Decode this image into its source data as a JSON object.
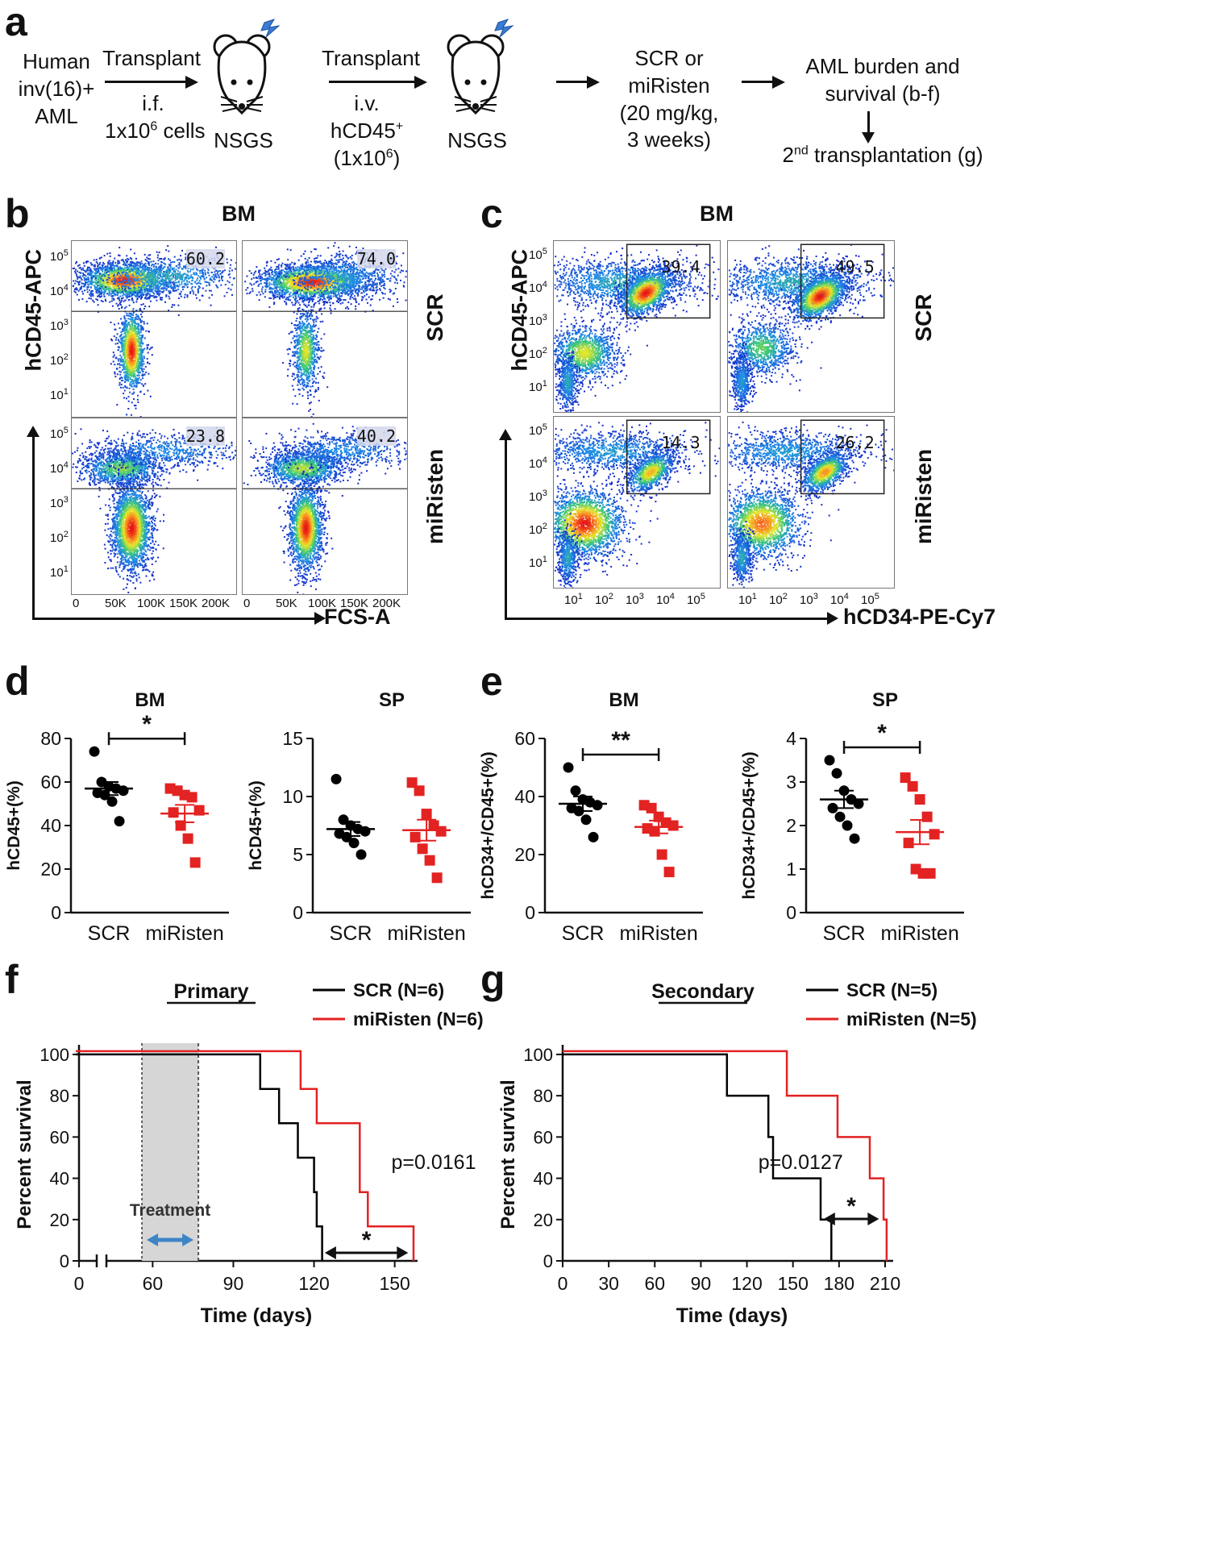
{
  "panel_letters": {
    "a": "a",
    "b": "b",
    "c": "c",
    "d": "d",
    "e": "e",
    "f": "f",
    "g": "g"
  },
  "panel_a": {
    "source_line1": "Human",
    "source_line2": "inv(16)+",
    "source_line3": "AML",
    "step1_top": "Transplant",
    "step1_route": "i.f.",
    "step1_cells_pre": "1x10",
    "step1_cells_exp": "6",
    "step1_cells_post": " cells",
    "mouse1_label": "NSGS",
    "step2_top": "Transplant",
    "step2_route": "i.v.",
    "step2_marker_pre": "hCD45",
    "step2_marker_sup": "+",
    "step2_count_pre": "(1x10",
    "step2_count_exp": "6",
    "step2_count_post": ")",
    "mouse2_label": "NSGS",
    "treat_line1": "SCR or",
    "treat_line2": "miRisten",
    "treat_line3": "(20 mg/kg,",
    "treat_line4": "3 weeks)",
    "outcome_line1": "AML burden and",
    "outcome_line2": "survival (b-f)",
    "second_pre": "2",
    "second_sup": "nd",
    "second_post": " transplantation (g)"
  },
  "panel_b": {
    "title": "BM",
    "y_axis": "hCD45-APC",
    "x_axis": "FCS-A",
    "row_labels": [
      "SCR",
      "miRisten"
    ],
    "values": [
      "60.2",
      "74.0",
      "23.8",
      "40.2"
    ],
    "y_ticks": [
      "10",
      "10",
      "10",
      "10",
      "10"
    ],
    "y_tick_exps": [
      "5",
      "4",
      "3",
      "2",
      "1"
    ],
    "x_ticks": [
      "0",
      "50K",
      "100K",
      "150K",
      "200K"
    ]
  },
  "panel_c": {
    "title": "BM",
    "y_axis": "hCD45-APC",
    "x_axis": "hCD34-PE-Cy7",
    "row_labels": [
      "SCR",
      "miRisten"
    ],
    "values": [
      "39.4",
      "49.5",
      "14.3",
      "26.2"
    ],
    "y_ticks": [
      "10",
      "10",
      "10",
      "10",
      "10"
    ],
    "y_tick_exps": [
      "5",
      "4",
      "3",
      "2",
      "1"
    ],
    "x_ticks": [
      "10",
      "10",
      "10",
      "10",
      "10"
    ],
    "x_tick_exps": [
      "1",
      "2",
      "3",
      "4",
      "5"
    ]
  },
  "chart_data": [
    {
      "id": "d_bm",
      "type": "scatter",
      "title": "BM",
      "ylabel": "hCD45+(%)",
      "categories": [
        "SCR",
        "miRisten"
      ],
      "ylim": [
        0,
        80
      ],
      "yticks": [
        0,
        20,
        40,
        60,
        80
      ],
      "significance": "*",
      "series": [
        {
          "name": "SCR",
          "color": "#000000",
          "values": [
            74,
            60,
            58,
            57,
            56,
            55,
            54,
            51,
            42
          ],
          "mean": 57,
          "sem": 3
        },
        {
          "name": "miRisten",
          "color": "#e32222",
          "values": [
            57,
            56,
            54,
            53,
            47,
            46,
            40,
            34,
            23
          ],
          "mean": 45.5,
          "sem": 4
        }
      ]
    },
    {
      "id": "d_sp",
      "type": "scatter",
      "title": "SP",
      "ylabel": "hCD45+(%)",
      "categories": [
        "SCR",
        "miRisten"
      ],
      "ylim": [
        0,
        15
      ],
      "yticks": [
        0,
        5,
        10,
        15
      ],
      "series": [
        {
          "name": "SCR",
          "color": "#000000",
          "values": [
            11.5,
            8,
            7.5,
            7.2,
            7,
            6.8,
            6.5,
            6,
            5
          ],
          "mean": 7.2,
          "sem": 0.6
        },
        {
          "name": "miRisten",
          "color": "#e32222",
          "values": [
            11.2,
            10.5,
            8.5,
            7.5,
            7,
            6.5,
            5.5,
            4.5,
            3
          ],
          "mean": 7.1,
          "sem": 0.9
        }
      ]
    },
    {
      "id": "e_bm",
      "type": "scatter",
      "title": "BM",
      "ylabel": "hCD34+/CD45+(%)",
      "categories": [
        "SCR",
        "miRisten"
      ],
      "ylim": [
        0,
        60
      ],
      "yticks": [
        0,
        20,
        40,
        60
      ],
      "significance": "**",
      "series": [
        {
          "name": "SCR",
          "color": "#000000",
          "values": [
            50,
            42,
            39,
            38,
            37,
            36,
            35,
            32,
            26
          ],
          "mean": 37.5,
          "sem": 2.5
        },
        {
          "name": "miRisten",
          "color": "#e32222",
          "values": [
            37,
            36,
            33,
            31,
            30,
            29,
            28,
            20,
            14
          ],
          "mean": 29.5,
          "sem": 2.2
        }
      ]
    },
    {
      "id": "e_sp",
      "type": "scatter",
      "title": "SP",
      "ylabel": "hCD34+/CD45+(%)",
      "categories": [
        "SCR",
        "miRisten"
      ],
      "ylim": [
        0,
        4
      ],
      "yticks": [
        0,
        1,
        2,
        3,
        4
      ],
      "significance": "*",
      "series": [
        {
          "name": "SCR",
          "color": "#000000",
          "values": [
            3.5,
            3.2,
            2.8,
            2.6,
            2.5,
            2.4,
            2.2,
            2.0,
            1.7
          ],
          "mean": 2.6,
          "sem": 0.2
        },
        {
          "name": "miRisten",
          "color": "#e32222",
          "values": [
            3.1,
            2.9,
            2.6,
            2.2,
            1.8,
            1.6,
            1.0,
            0.9,
            0.9
          ],
          "mean": 1.85,
          "sem": 0.28
        }
      ]
    },
    {
      "id": "f",
      "type": "line",
      "title": "Primary",
      "ylabel": "Percent survival",
      "xlabel": "Time (days)",
      "xlim": [
        0,
        160
      ],
      "xticks": [
        0,
        60,
        90,
        120,
        150
      ],
      "ylim": [
        0,
        100
      ],
      "yticks": [
        0,
        20,
        40,
        60,
        80,
        100
      ],
      "annotation": "p=0.0161",
      "treatment_label": "Treatment",
      "treatment_window": [
        56,
        77
      ],
      "significance": "*",
      "series": [
        {
          "name": "SCR (N=6)",
          "color": "#000000",
          "steps": [
            [
              0,
              100
            ],
            [
              100,
              100
            ],
            [
              100,
              83.3
            ],
            [
              107,
              83.3
            ],
            [
              107,
              66.7
            ],
            [
              114,
              66.7
            ],
            [
              114,
              50
            ],
            [
              120,
              50
            ],
            [
              120,
              33.3
            ],
            [
              121,
              33.3
            ],
            [
              121,
              16.7
            ],
            [
              123,
              16.7
            ],
            [
              123,
              0
            ]
          ]
        },
        {
          "name": "miRisten (N=6)",
          "color": "#e32222",
          "steps": [
            [
              0,
              100
            ],
            [
              115,
              100
            ],
            [
              115,
              83.3
            ],
            [
              121,
              83.3
            ],
            [
              121,
              66.7
            ],
            [
              137,
              66.7
            ],
            [
              137,
              33.3
            ],
            [
              140,
              33.3
            ],
            [
              140,
              16.7
            ],
            [
              157,
              16.7
            ],
            [
              157,
              0
            ]
          ]
        }
      ]
    },
    {
      "id": "g",
      "type": "line",
      "title": "Secondary",
      "ylabel": "Percent survival",
      "xlabel": "Time (days)",
      "xlim": [
        0,
        220
      ],
      "xticks": [
        0,
        30,
        60,
        90,
        120,
        150,
        180,
        210
      ],
      "ylim": [
        0,
        100
      ],
      "yticks": [
        0,
        20,
        40,
        60,
        80,
        100
      ],
      "annotation": "p=0.0127",
      "significance": "*",
      "series": [
        {
          "name": "SCR (N=5)",
          "color": "#000000",
          "steps": [
            [
              0,
              100
            ],
            [
              107,
              100
            ],
            [
              107,
              80
            ],
            [
              134,
              80
            ],
            [
              134,
              60
            ],
            [
              137,
              60
            ],
            [
              137,
              40
            ],
            [
              168,
              40
            ],
            [
              168,
              20
            ],
            [
              175,
              20
            ],
            [
              175,
              0
            ]
          ]
        },
        {
          "name": "miRisten (N=5)",
          "color": "#e32222",
          "steps": [
            [
              0,
              100
            ],
            [
              146,
              100
            ],
            [
              146,
              80
            ],
            [
              179,
              80
            ],
            [
              179,
              60
            ],
            [
              200,
              60
            ],
            [
              200,
              40
            ],
            [
              209,
              40
            ],
            [
              209,
              20
            ],
            [
              211,
              20
            ],
            [
              211,
              0
            ]
          ]
        }
      ]
    }
  ]
}
